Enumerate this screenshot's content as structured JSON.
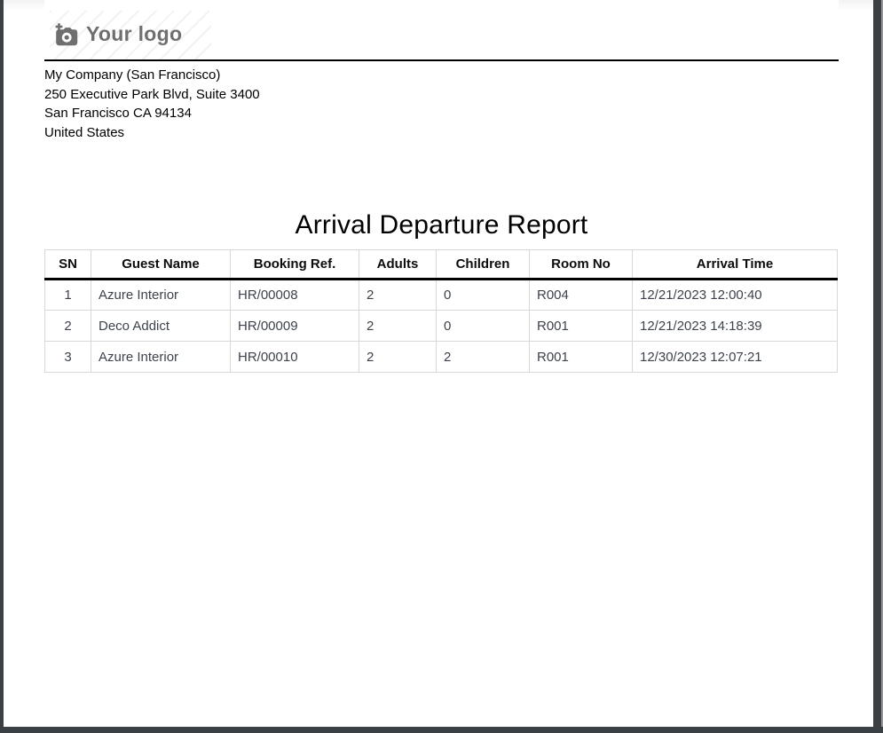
{
  "header": {
    "logo_text": "Your logo",
    "logo_icon": "camera-plus-icon",
    "company_lines": [
      "My Company (San Francisco)",
      "250 Executive Park Blvd, Suite 3400",
      "San Francisco CA 94134",
      "United States"
    ]
  },
  "report": {
    "title": "Arrival Departure Report",
    "columns": [
      "SN",
      "Guest Name",
      "Booking Ref.",
      "Adults",
      "Children",
      "Room No",
      "Arrival Time"
    ],
    "rows": [
      [
        "1",
        "Azure Interior",
        "HR/00008",
        "2",
        "0",
        "R004",
        "12/21/2023 12:00:40"
      ],
      [
        "2",
        "Deco Addict",
        "HR/00009",
        "2",
        "0",
        "R001",
        "12/21/2023 14:18:39"
      ],
      [
        "3",
        "Azure Interior",
        "HR/00010",
        "2",
        "2",
        "R001",
        "12/30/2023 12:07:21"
      ]
    ]
  },
  "colors": {
    "frame_dark": "#3b4045",
    "scroll_edge": "#97989c",
    "logo_gray": "#6f6f6f",
    "table_border": "#d8d8d8",
    "header_rule": "#000000",
    "cell_text": "#3d434c"
  }
}
